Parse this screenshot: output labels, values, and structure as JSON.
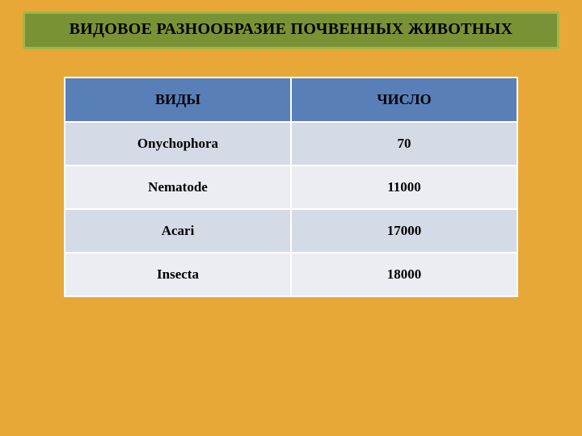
{
  "title": "ВИДОВОЕ РАЗНООБРАЗИЕ ПОЧВЕННЫХ ЖИВОТНЫХ",
  "table": {
    "type": "table",
    "columns": [
      "ВИДЫ",
      "ЧИСЛО"
    ],
    "column_widths_pct": [
      50,
      50
    ],
    "header_bg": "#597fb9",
    "header_fg": "#000000",
    "row_bg_odd": "#d4dae6",
    "row_bg_even": "#ecedf3",
    "border_color": "#ffffff",
    "font_family": "Times New Roman",
    "header_fontsize": 18,
    "cell_fontsize": 17,
    "rows": [
      {
        "species": "Onychophora",
        "count": "70"
      },
      {
        "species": "Nematode",
        "count": "11000"
      },
      {
        "species": "Acari",
        "count": "17000"
      },
      {
        "species": "Insecta",
        "count": "18000"
      }
    ]
  },
  "page": {
    "background_color": "#e8a838",
    "title_bg": "#7a9236",
    "title_border": "#9db84a",
    "title_fontsize": 20
  }
}
